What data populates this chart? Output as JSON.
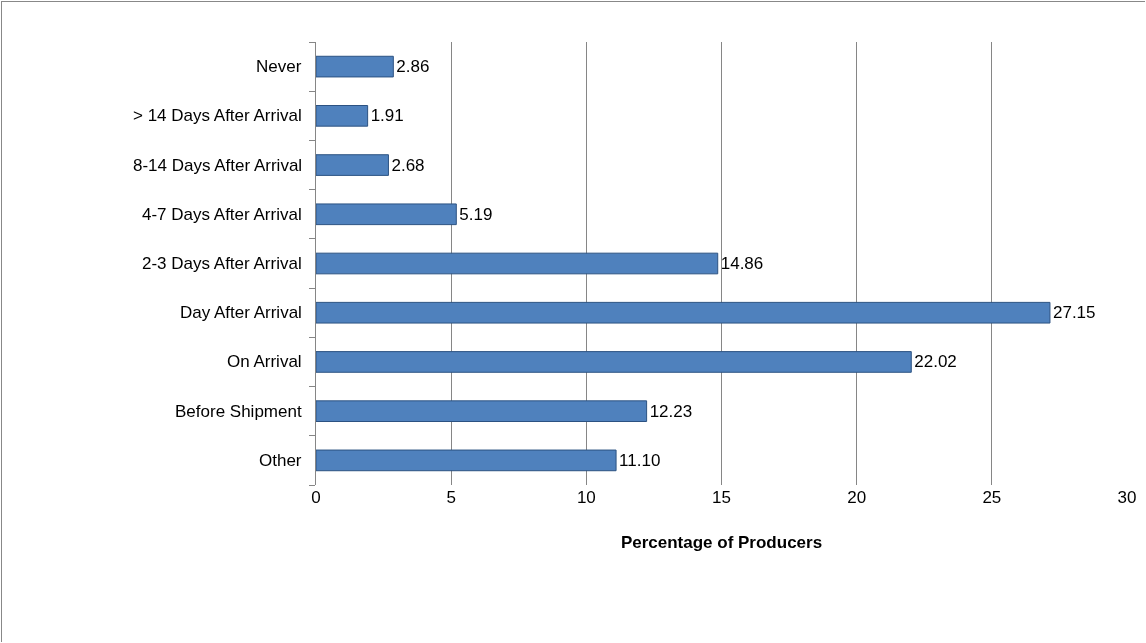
{
  "chart_data": {
    "type": "bar",
    "orientation": "horizontal",
    "xlabel": "Percentage of Producers",
    "categories": [
      "Never",
      "> 14 Days After Arrival",
      "8-14 Days After Arrival",
      "4-7 Days After Arrival",
      "2-3 Days After Arrival",
      "Day After Arrival",
      "On Arrival",
      "Before Shipment",
      "Other"
    ],
    "values": [
      2.86,
      1.91,
      2.68,
      5.19,
      14.86,
      27.15,
      22.02,
      12.23,
      11.1
    ],
    "value_labels": [
      "2.86",
      "1.91",
      "2.68",
      "5.19",
      "14.86",
      "27.15",
      "22.02",
      "12.23",
      "11.10"
    ],
    "color": "#4f81bd",
    "xlim": [
      0,
      30
    ],
    "xticks": [
      0,
      5,
      10,
      15,
      20,
      25,
      30
    ],
    "grid": "x",
    "legend": false
  }
}
